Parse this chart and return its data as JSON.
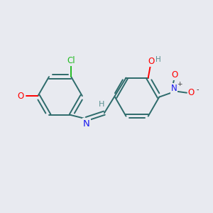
{
  "background_color": "#e8eaf0",
  "bond_color": "#2d6b6b",
  "atom_colors": {
    "Cl": "#22bb22",
    "O": "#ff0000",
    "N_imine": "#1a1aee",
    "N_nitro": "#1a1aee",
    "O_nitro": "#ff0000",
    "H": "#5a9090",
    "C": "#2d6b6b"
  },
  "figsize": [
    3.0,
    3.0
  ],
  "dpi": 100
}
